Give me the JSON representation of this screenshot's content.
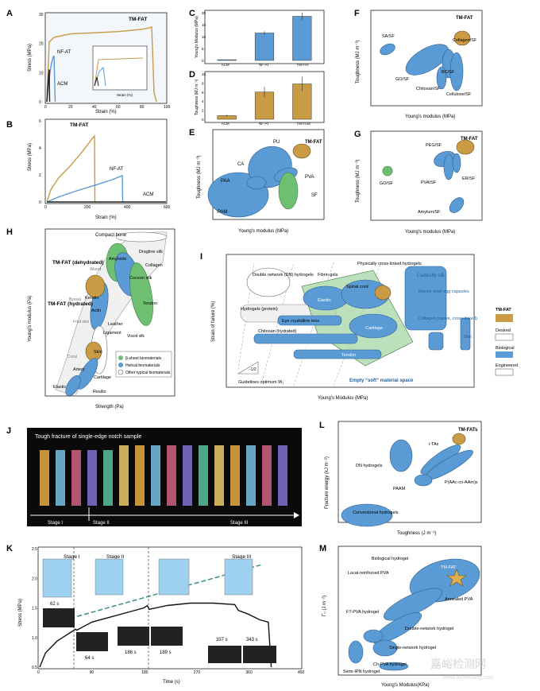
{
  "colors": {
    "tmfat": "#C89B44",
    "blue": "#5B9BD5",
    "green": "#6FBF73",
    "light": "#E8ECF0",
    "dark": "#1F1F1F",
    "teal": "#3A8C88"
  },
  "panels": {
    "A": {
      "letter": "A",
      "xlabel": "Strain (%)",
      "ylabel": "Stress (MPa)",
      "series": [
        {
          "name": "TM-FAT",
          "color": "#C89B44"
        },
        {
          "name": "NF-AT",
          "color": "#5B9BD5"
        },
        {
          "name": "ACM",
          "color": "#1F1F1F"
        }
      ],
      "xticks": [
        "0",
        "20",
        "40",
        "60",
        "80",
        "100"
      ],
      "yticks": [
        "0",
        "10",
        "20",
        "30"
      ],
      "inset": {
        "xlabel": "Strain (%)",
        "ylabel": "Stress (MPa)",
        "xticks": [
          "0",
          "5",
          "10"
        ],
        "yticks": [
          "0",
          "1",
          "2"
        ]
      }
    },
    "B": {
      "letter": "B",
      "xlabel": "Strain (%)",
      "ylabel": "Stress (MPa)",
      "series": [
        {
          "name": "TM-FAT",
          "color": "#C89B44"
        },
        {
          "name": "NF-AT",
          "color": "#5B9BD5"
        },
        {
          "name": "ACM",
          "color": "#1F1F1F"
        }
      ],
      "xticks": [
        "0",
        "200",
        "400",
        "600"
      ],
      "yticks": [
        "0",
        "2",
        "4",
        "6"
      ]
    },
    "C": {
      "letter": "C",
      "ylabel": "Young's Modulus (MPa)",
      "categories": [
        "ACM",
        "NF-AT",
        "TM-FAT"
      ],
      "values": [
        0.3,
        11.5,
        18.5
      ],
      "errors": [
        0.1,
        0.8,
        1.6
      ],
      "ylim": [
        0,
        20
      ],
      "yticks": [
        "0",
        "5",
        "10",
        "15",
        "20"
      ]
    },
    "D": {
      "letter": "D",
      "ylabel": "Toughness (MJ m⁻³)",
      "categories": [
        "ACM",
        "NF-AT",
        "TM-FAM"
      ],
      "values": [
        0.8,
        6.0,
        7.8
      ],
      "errors": [
        0.2,
        1.2,
        1.6
      ],
      "ylim": [
        0,
        10
      ],
      "yticks": [
        "0",
        "2",
        "4",
        "6",
        "8",
        "10"
      ]
    },
    "E": {
      "letter": "E",
      "xlabel": "Young's modulus (MPa)",
      "ylabel": "Toughness (MJ m⁻³)",
      "labels": [
        "PU",
        "TM-FAT",
        "CA",
        "PAA",
        "PVA",
        "SF",
        "PAM"
      ]
    },
    "F": {
      "letter": "F",
      "xlabel": "Young's modulus (MPa)",
      "ylabel": "Toughness (MJ m⁻³)",
      "labels": [
        "TM-FAT",
        "SA/SF",
        "Collagen/SF",
        "BC/SF",
        "GO/SF",
        "Chitosan/SF",
        "Cellulose/SF"
      ]
    },
    "G": {
      "letter": "G",
      "xlabel": "Young's modulus (MPa)",
      "ylabel": "Toughness (MJ m⁻³)",
      "labels": [
        "PEG/SF",
        "TM-FAT",
        "GO/SF",
        "ER/SF",
        "PVA/SF",
        "Amylum/SF"
      ]
    },
    "H": {
      "letter": "H",
      "xlabel": "Strength (Pa)",
      "ylabel": "Young's modulus (Pa)",
      "labels": [
        "Compact bone",
        "Amyloids",
        "Dragline silk",
        "Wood",
        "Collagen",
        "Cocoon silk",
        "Keratin",
        "Tendon",
        "Actin",
        "Leather",
        "Fruit skin",
        "Ligament",
        "Byssal",
        "Mussel",
        "Coral",
        "Skin",
        "Artery",
        "Cartilage",
        "Elastic",
        "Resilin",
        "Viscid silk"
      ],
      "tm_labels": [
        "TM-FAT (dehydrated)",
        "TM-FAT (hydrated)"
      ],
      "legend": [
        "β-sheet biomaterials",
        "Helical biomaterials",
        "Other typical biomaterials"
      ]
    },
    "I": {
      "letter": "I",
      "xlabel": "Young's Modulus (MPa)",
      "ylabel": "Strain of failure (%)",
      "labels": [
        "Physically cross-linked hydrogels",
        "Caddisfly silk",
        "Double network (DN) hydrogels",
        "Fibrin gels",
        "Spinal cord",
        "Marine snail egg capsules",
        "Elastin",
        "Hydrogels (protein)",
        "Eye crystalline lens",
        "Collagen (native, cross-linked)",
        "Chitosan (hydrated)",
        "Cartilage",
        "Cornea",
        "Tendon",
        "Skin",
        "Guidelines optimum W₁",
        "Empty “soft” material space",
        "-1/2"
      ],
      "legend": [
        "TM-FAT",
        "Desired",
        "Biological",
        "Engineered"
      ]
    },
    "J": {
      "letter": "J",
      "title": "Tough fracture of single-edge notch sample",
      "stages": [
        "Stage I",
        "Stage II",
        "Stage III"
      ]
    },
    "K": {
      "letter": "K",
      "xlabel": "Time (s)",
      "ylabel": "Stress (MPa)",
      "stages": [
        "Stage I",
        "Stage II",
        "Stage III"
      ],
      "xticks": [
        "0",
        "90",
        "180",
        "270",
        "360",
        "450"
      ],
      "yticks": [
        "0.5",
        "1.0",
        "1.5",
        "2.0",
        "2.5"
      ],
      "times": [
        "62 s",
        "64 s",
        "186 s",
        "189 s",
        "337 s",
        "343 s"
      ]
    },
    "L": {
      "letter": "L",
      "xlabel": "Toughness (J m⁻²)",
      "ylabel": "Fracture energy (kJ m⁻²)",
      "labels": [
        "TM-FATs",
        "i-TAs",
        "DN hydrogels",
        "P(AAc-co-AAm)s",
        "PAAM",
        "Conventional hydrogels"
      ]
    },
    "M": {
      "letter": "M",
      "xlabel": "Young's Modulus(KPa)",
      "ylabel": "Γ₀ (J m⁻²)",
      "labels": [
        "Biological hydrogel",
        "TM-FAT",
        "Local-reinforced PVA",
        "Annealed PVA",
        "FT-PVA hydrogel",
        "Double-network hydrogel",
        "Single-network hydrogel",
        "Semi-IPN hydrogel",
        "Ch-PVA hydrogel"
      ]
    }
  },
  "watermark": "嘉峪检测网",
  "watermark_url": "www.anytesting.com",
  "chart_data": [
    {
      "type": "line",
      "panel": "A",
      "xlabel": "Strain (%)",
      "ylabel": "Stress (MPa)",
      "xlim": [
        0,
        100
      ],
      "ylim": [
        0,
        38
      ],
      "series": [
        {
          "name": "TM-FAT",
          "x": [
            0,
            2,
            6,
            20,
            40,
            60,
            70,
            80,
            85,
            88,
            90,
            92
          ],
          "y": [
            0,
            26,
            28,
            29.5,
            30,
            30.5,
            31,
            31.5,
            32,
            32.5,
            4,
            0
          ]
        },
        {
          "name": "NF-AT",
          "x": [
            0,
            1,
            2,
            3,
            4,
            5,
            6,
            7
          ],
          "y": [
            0,
            6,
            10,
            14,
            17,
            19,
            20,
            0
          ]
        },
        {
          "name": "ACM",
          "x": [
            0,
            0.5,
            1,
            1.5,
            2,
            2.3
          ],
          "y": [
            0,
            4,
            8,
            12,
            14,
            0
          ]
        }
      ]
    },
    {
      "type": "line",
      "panel": "B",
      "xlabel": "Strain (%)",
      "ylabel": "Stress (MPa)",
      "xlim": [
        0,
        600
      ],
      "ylim": [
        0,
        8
      ],
      "series": [
        {
          "name": "TM-FAT",
          "x": [
            0,
            20,
            60,
            120,
            180,
            230,
            240,
            242
          ],
          "y": [
            0,
            1.2,
            2.4,
            3.6,
            5.0,
            6.3,
            6.5,
            0
          ]
        },
        {
          "name": "NF-AT",
          "x": [
            0,
            60,
            150,
            250,
            330,
            380,
            382
          ],
          "y": [
            0,
            0.5,
            1.1,
            1.7,
            2.2,
            2.6,
            0
          ]
        },
        {
          "name": "ACM",
          "x": [
            0,
            600
          ],
          "y": [
            0,
            0
          ]
        }
      ]
    },
    {
      "type": "bar",
      "panel": "C",
      "categories": [
        "ACM",
        "NF-AT",
        "TM-FAT"
      ],
      "values": [
        0.3,
        11.5,
        18.5
      ],
      "ylabel": "Young's Modulus (MPa)",
      "ylim": [
        0,
        20
      ]
    },
    {
      "type": "bar",
      "panel": "D",
      "categories": [
        "ACM",
        "NF-AT",
        "TM-FAM"
      ],
      "values": [
        0.8,
        6.0,
        7.8
      ],
      "ylabel": "Toughness (MJ m⁻³)",
      "ylim": [
        0,
        10
      ]
    },
    {
      "type": "line",
      "panel": "K",
      "xlabel": "Time (s)",
      "ylabel": "Stress (MPa)",
      "xlim": [
        0,
        450
      ],
      "ylim": [
        0,
        2.5
      ],
      "series": [
        {
          "name": "stress",
          "x": [
            0,
            10,
            30,
            62,
            64,
            90,
            120,
            150,
            180,
            186,
            189,
            220,
            260,
            300,
            337,
            343,
            360,
            380,
            395,
            400
          ],
          "y": [
            0,
            0.3,
            0.55,
            0.8,
            0.78,
            0.95,
            1.05,
            1.15,
            1.25,
            1.3,
            1.22,
            1.3,
            1.35,
            1.35,
            1.32,
            1.2,
            1.12,
            1.0,
            0.95,
            0
          ]
        }
      ]
    }
  ]
}
